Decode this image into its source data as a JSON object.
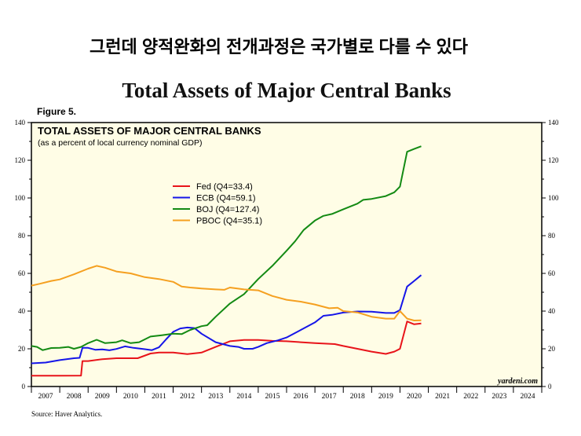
{
  "heading": "그런데 양적완화의 전개과정은 국가별로 다를 수 있다",
  "chart_data": {
    "type": "line",
    "title": "Total Assets of Major Central Banks",
    "figure_label": "Figure 5.",
    "inner_title": "TOTAL ASSETS OF MAJOR CENTRAL BANKS",
    "subtitle": "(as a percent of local currency nominal GDP)",
    "xlabel": "",
    "ylabel": "",
    "xlim": [
      2007,
      2025
    ],
    "ylim": [
      0,
      140
    ],
    "yticks": [
      0,
      20,
      40,
      60,
      80,
      100,
      120,
      140
    ],
    "xticks": [
      "2007",
      "2008",
      "2009",
      "2010",
      "2011",
      "2012",
      "2013",
      "2014",
      "2015",
      "2016",
      "2017",
      "2018",
      "2019",
      "2020",
      "2021",
      "2022",
      "2023",
      "2024"
    ],
    "legend_position": "center-left",
    "background": "#fffde6",
    "watermark": "yardeni.com",
    "source": "Source: Haver Analytics.",
    "series": [
      {
        "name": "Fed (Q4=33.4)",
        "color": "#e8141a",
        "x": [
          2007,
          2008,
          2008.75,
          2008.8,
          2009,
          2009.5,
          2010,
          2010.75,
          2011.2,
          2011.5,
          2012,
          2012.5,
          2013,
          2013.5,
          2014,
          2014.5,
          2015,
          2015.5,
          2016,
          2017,
          2017.7,
          2018,
          2018.5,
          2019,
          2019.5,
          2019.8,
          2020,
          2020.25,
          2020.5,
          2020.75
        ],
        "y": [
          5.7,
          5.7,
          5.8,
          13.5,
          13.5,
          14.5,
          15,
          15,
          17.5,
          18,
          18,
          17.2,
          18,
          21,
          24,
          24.7,
          24.7,
          24.2,
          24,
          23,
          22.5,
          21.5,
          20,
          18.5,
          17.3,
          18.5,
          20,
          34.5,
          33,
          33.4
        ]
      },
      {
        "name": "ECB (Q4=59.1)",
        "color": "#1515e8",
        "x": [
          2007,
          2007.5,
          2008,
          2008.5,
          2008.7,
          2008.8,
          2009,
          2009.25,
          2009.5,
          2009.75,
          2010,
          2010.3,
          2010.6,
          2011,
          2011.25,
          2011.5,
          2011.75,
          2012,
          2012.25,
          2012.5,
          2012.75,
          2013,
          2013.5,
          2014,
          2014.3,
          2014.5,
          2014.8,
          2015,
          2015.3,
          2015.7,
          2016,
          2016.5,
          2017,
          2017.3,
          2017.6,
          2018,
          2018.5,
          2019,
          2019.5,
          2019.8,
          2020,
          2020.25,
          2020.5,
          2020.75
        ],
        "y": [
          12.3,
          12.7,
          14,
          15,
          15.2,
          20.5,
          20.5,
          19.5,
          19.7,
          19.2,
          19.9,
          21.3,
          20.5,
          19.8,
          19.3,
          20.8,
          25,
          29,
          30.8,
          31.3,
          31,
          28,
          23.5,
          21.5,
          21,
          20,
          20,
          21,
          23,
          24.5,
          26,
          30,
          34,
          37.5,
          38,
          39.2,
          39.8,
          39.7,
          39,
          39,
          40.5,
          53,
          56,
          59.1
        ]
      },
      {
        "name": "BOJ (Q4=127.4)",
        "color": "#138a13",
        "x": [
          2007,
          2007.2,
          2007.4,
          2007.7,
          2008,
          2008.3,
          2008.5,
          2008.75,
          2009,
          2009.3,
          2009.6,
          2010,
          2010.2,
          2010.5,
          2010.8,
          2011.2,
          2011.6,
          2012,
          2012.3,
          2012.6,
          2013,
          2013.2,
          2013.5,
          2014,
          2014.5,
          2015,
          2015.5,
          2016,
          2016.3,
          2016.6,
          2017,
          2017.3,
          2017.6,
          2018,
          2018.5,
          2018.7,
          2019,
          2019.5,
          2019.8,
          2020,
          2020.25,
          2020.5,
          2020.75
        ],
        "y": [
          21.5,
          21,
          19.3,
          20.4,
          20.5,
          21,
          20,
          21,
          23,
          24.8,
          23,
          23.5,
          24.5,
          23,
          23.5,
          26.5,
          27.2,
          28,
          27.8,
          30,
          32,
          32.5,
          37,
          44,
          49,
          57,
          64,
          72,
          77,
          83,
          88,
          90.5,
          91.5,
          94,
          97,
          99,
          99.5,
          101,
          103,
          106,
          124.5,
          126,
          127.4
        ]
      },
      {
        "name": "PBOC (Q4=35.1)",
        "color": "#f5a020",
        "x": [
          2007,
          2007.3,
          2007.7,
          2008,
          2008.5,
          2009,
          2009.3,
          2009.6,
          2010,
          2010.5,
          2011,
          2011.5,
          2012,
          2012.3,
          2012.6,
          2013,
          2013.5,
          2013.8,
          2014,
          2014.5,
          2015,
          2015.5,
          2016,
          2016.5,
          2017,
          2017.5,
          2017.8,
          2018,
          2018.5,
          2019,
          2019.5,
          2019.8,
          2020,
          2020.25,
          2020.5,
          2020.75
        ],
        "y": [
          53.5,
          54.5,
          56,
          56.8,
          59.5,
          62.5,
          64,
          63,
          61,
          60,
          58,
          57,
          55.5,
          53,
          52.5,
          52,
          51.5,
          51.3,
          52.5,
          51.5,
          51,
          48,
          46,
          45,
          43.5,
          41.5,
          41.8,
          40,
          39.3,
          37,
          36,
          36,
          40,
          36,
          35,
          35.1
        ]
      }
    ]
  }
}
